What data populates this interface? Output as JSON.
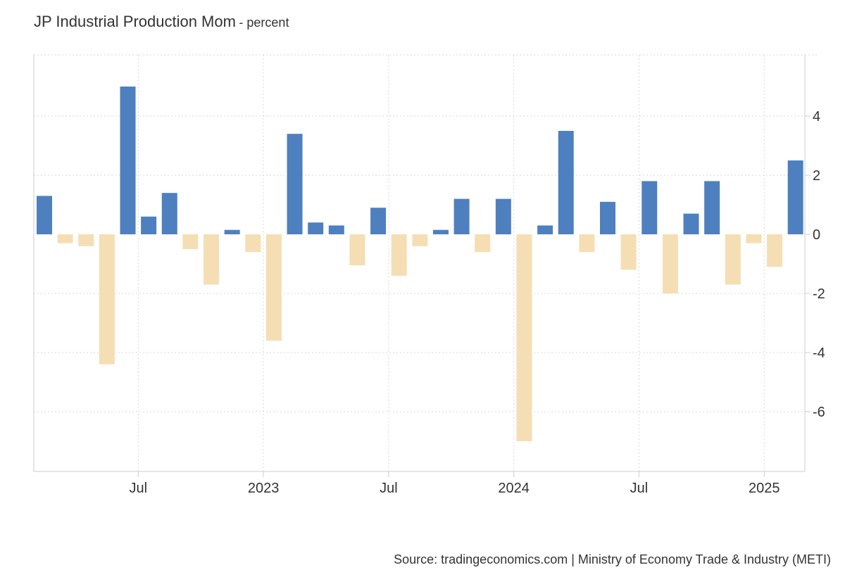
{
  "chart_data": {
    "type": "bar",
    "title": "JP Industrial Production Mom",
    "subtitle": "- percent",
    "source": "Source: tradingeconomics.com | Ministry of Economy Trade & Industry (METI)",
    "xlabel": "",
    "ylabel": "",
    "y_ticks": [
      -6,
      -4,
      -2,
      0,
      2,
      4
    ],
    "ylim": [
      -7.95,
      6.0
    ],
    "x_tick_labels": [
      {
        "label": "Jul",
        "date": "2022-07"
      },
      {
        "label": "2023",
        "date": "2023-01"
      },
      {
        "label": "Jul",
        "date": "2023-07"
      },
      {
        "label": "2024",
        "date": "2024-01"
      },
      {
        "label": "Jul",
        "date": "2024-07"
      },
      {
        "label": "2025",
        "date": "2025-01"
      }
    ],
    "grid": true,
    "colors": {
      "positive": "#4e80bf",
      "negative": "#f5deb3",
      "grid": "#d9d9d9",
      "axis": "#cccccc"
    },
    "series": [
      {
        "categories": [
          "2022-02",
          "2022-03",
          "2022-04",
          "2022-05",
          "2022-06",
          "2022-07",
          "2022-08",
          "2022-09",
          "2022-10",
          "2022-11",
          "2022-12",
          "2023-01",
          "2023-02",
          "2023-03",
          "2023-04",
          "2023-05",
          "2023-06",
          "2023-07",
          "2023-08",
          "2023-09",
          "2023-10",
          "2023-11",
          "2023-12",
          "2024-01",
          "2024-02",
          "2024-03",
          "2024-04",
          "2024-05",
          "2024-06",
          "2024-07",
          "2024-08",
          "2024-09",
          "2024-10",
          "2024-11",
          "2024-12",
          "2025-01",
          "2025-02"
        ],
        "values": [
          1.3,
          -0.3,
          -0.4,
          -4.4,
          5.0,
          0.6,
          1.4,
          -0.5,
          -1.7,
          0.15,
          -0.6,
          -3.6,
          3.4,
          0.4,
          0.3,
          -1.05,
          0.9,
          -1.4,
          -0.4,
          0.15,
          1.2,
          -0.6,
          1.2,
          -7.0,
          0.3,
          3.5,
          -0.6,
          1.1,
          -1.2,
          1.8,
          -2.0,
          0.7,
          1.8,
          -1.7,
          -0.3,
          -1.1,
          2.5
        ]
      }
    ]
  }
}
